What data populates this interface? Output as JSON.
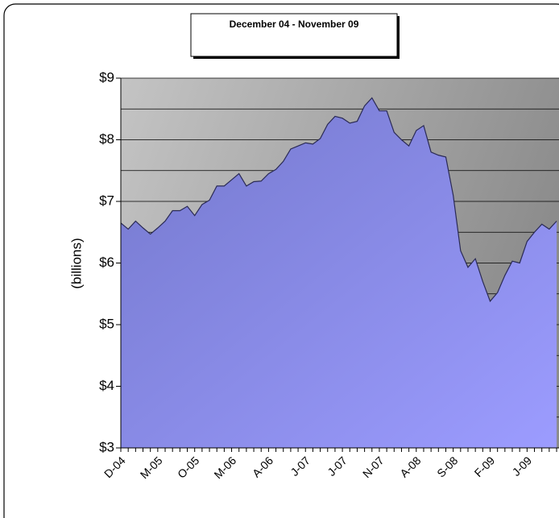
{
  "chart_data": {
    "type": "area",
    "title": "December  04 - November 09",
    "y_label": "(billions)",
    "categories": [
      "D-04",
      null,
      null,
      null,
      null,
      "M-05",
      null,
      null,
      null,
      null,
      "O-05",
      null,
      null,
      null,
      null,
      "M-06",
      null,
      null,
      null,
      null,
      "A-06",
      null,
      null,
      null,
      null,
      "J-07",
      null,
      null,
      null,
      null,
      "J-07",
      null,
      null,
      null,
      null,
      "N-07",
      null,
      null,
      null,
      null,
      "A-08",
      null,
      null,
      null,
      null,
      "S-08",
      null,
      null,
      null,
      null,
      "F-09",
      null,
      null,
      null,
      null,
      "J-09",
      null,
      null,
      null,
      null
    ],
    "values": [
      6.65,
      6.55,
      6.68,
      6.57,
      6.47,
      6.57,
      6.68,
      6.85,
      6.85,
      6.92,
      6.77,
      6.95,
      7.02,
      7.25,
      7.25,
      7.35,
      7.45,
      7.25,
      7.32,
      7.33,
      7.45,
      7.52,
      7.65,
      7.85,
      7.9,
      7.95,
      7.93,
      8.02,
      8.25,
      8.38,
      8.35,
      8.27,
      8.3,
      8.55,
      8.68,
      8.47,
      8.47,
      8.12,
      8.0,
      7.9,
      8.15,
      8.23,
      7.8,
      7.75,
      7.72,
      7.1,
      6.2,
      5.93,
      6.07,
      5.7,
      5.38,
      5.52,
      5.8,
      6.03,
      6.0,
      6.35,
      6.5,
      6.63,
      6.55,
      6.68
    ],
    "color": "#8a8ee6",
    "ylim": [
      3,
      9
    ],
    "yticks": [
      {
        "value": 3,
        "label": "$3"
      },
      {
        "value": 4,
        "label": "$4"
      },
      {
        "value": 5,
        "label": "$5"
      },
      {
        "value": 6,
        "label": "$6"
      },
      {
        "value": 7,
        "label": "$7"
      },
      {
        "value": 8,
        "label": "$8"
      },
      {
        "value": 9,
        "label": "$9"
      }
    ],
    "minor_yticks": [
      3.5,
      4.5,
      5.5,
      6.5,
      7.5,
      8.5
    ],
    "grid": true
  }
}
